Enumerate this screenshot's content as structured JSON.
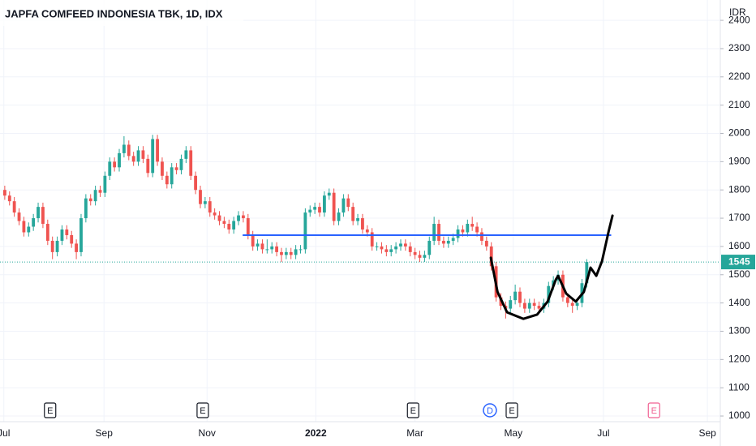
{
  "chart_data": {
    "type": "candlestick",
    "title": "JAPFA COMFEED INDONESIA TBK, 1D, IDX",
    "currency": "IDR",
    "up_color": "#26a69a",
    "down_color": "#ef5350",
    "xlim": [
      -1,
      150
    ],
    "ylim": [
      980,
      2472
    ],
    "xticks": [
      {
        "value": -0.2,
        "label": "Jul"
      },
      {
        "value": 20.8,
        "label": "Sep"
      },
      {
        "value": 42.4,
        "label": "Nov"
      },
      {
        "value": 65.2,
        "label": "2022"
      },
      {
        "value": 86,
        "label": "Mar"
      },
      {
        "value": 106.6,
        "label": "May"
      },
      {
        "value": 125.5,
        "label": "Jul"
      },
      {
        "value": 147.3,
        "label": "Sep"
      }
    ],
    "yticks": [
      1000,
      1100,
      1200,
      1300,
      1400,
      1500,
      1600,
      1700,
      1800,
      1900,
      2000,
      2100,
      2200,
      2300,
      2400
    ],
    "grid": true,
    "ohlc": [
      [
        1800,
        1815,
        1765,
        1780
      ],
      [
        1780,
        1795,
        1745,
        1760
      ],
      [
        1760,
        1775,
        1705,
        1720
      ],
      [
        1720,
        1735,
        1675,
        1690
      ],
      [
        1690,
        1705,
        1635,
        1650
      ],
      [
        1650,
        1685,
        1635,
        1670
      ],
      [
        1670,
        1715,
        1655,
        1700
      ],
      [
        1700,
        1755,
        1685,
        1740
      ],
      [
        1740,
        1755,
        1665,
        1680
      ],
      [
        1680,
        1695,
        1605,
        1620
      ],
      [
        1620,
        1635,
        1555,
        1580
      ],
      [
        1580,
        1635,
        1565,
        1620
      ],
      [
        1620,
        1675,
        1605,
        1660
      ],
      [
        1660,
        1675,
        1625,
        1640
      ],
      [
        1640,
        1655,
        1595,
        1610
      ],
      [
        1610,
        1625,
        1555,
        1580
      ],
      [
        1580,
        1715,
        1565,
        1700
      ],
      [
        1700,
        1785,
        1685,
        1770
      ],
      [
        1770,
        1785,
        1745,
        1760
      ],
      [
        1760,
        1815,
        1745,
        1800
      ],
      [
        1800,
        1815,
        1775,
        1790
      ],
      [
        1790,
        1865,
        1775,
        1850
      ],
      [
        1850,
        1915,
        1835,
        1900
      ],
      [
        1900,
        1915,
        1865,
        1880
      ],
      [
        1880,
        1945,
        1865,
        1930
      ],
      [
        1930,
        1990,
        1915,
        1960
      ],
      [
        1960,
        1975,
        1905,
        1920
      ],
      [
        1920,
        1935,
        1885,
        1900
      ],
      [
        1900,
        1955,
        1885,
        1940
      ],
      [
        1940,
        1955,
        1895,
        1910
      ],
      [
        1910,
        1925,
        1845,
        1860
      ],
      [
        1860,
        1995,
        1845,
        1980
      ],
      [
        1980,
        1995,
        1885,
        1900
      ],
      [
        1900,
        1915,
        1835,
        1850
      ],
      [
        1850,
        1865,
        1805,
        1820
      ],
      [
        1820,
        1895,
        1805,
        1880
      ],
      [
        1880,
        1895,
        1855,
        1870
      ],
      [
        1870,
        1925,
        1855,
        1910
      ],
      [
        1910,
        1955,
        1895,
        1940
      ],
      [
        1940,
        1955,
        1835,
        1850
      ],
      [
        1850,
        1865,
        1785,
        1800
      ],
      [
        1800,
        1815,
        1735,
        1750
      ],
      [
        1750,
        1775,
        1735,
        1760
      ],
      [
        1760,
        1775,
        1705,
        1720
      ],
      [
        1720,
        1735,
        1695,
        1710
      ],
      [
        1710,
        1725,
        1675,
        1690
      ],
      [
        1690,
        1705,
        1665,
        1680
      ],
      [
        1680,
        1695,
        1645,
        1660
      ],
      [
        1660,
        1705,
        1645,
        1690
      ],
      [
        1690,
        1725,
        1675,
        1710
      ],
      [
        1710,
        1725,
        1685,
        1700
      ],
      [
        1700,
        1715,
        1625,
        1640
      ],
      [
        1640,
        1655,
        1585,
        1600
      ],
      [
        1600,
        1625,
        1585,
        1610
      ],
      [
        1610,
        1625,
        1575,
        1590
      ],
      [
        1590,
        1625,
        1575,
        1590
      ],
      [
        1590,
        1615,
        1575,
        1600
      ],
      [
        1600,
        1615,
        1565,
        1580
      ],
      [
        1580,
        1595,
        1545,
        1570
      ],
      [
        1570,
        1595,
        1555,
        1580
      ],
      [
        1580,
        1595,
        1555,
        1570
      ],
      [
        1570,
        1605,
        1555,
        1590
      ],
      [
        1590,
        1605,
        1575,
        1590
      ],
      [
        1590,
        1735,
        1575,
        1720
      ],
      [
        1720,
        1745,
        1705,
        1730
      ],
      [
        1730,
        1755,
        1715,
        1740
      ],
      [
        1740,
        1755,
        1705,
        1720
      ],
      [
        1720,
        1795,
        1705,
        1780
      ],
      [
        1780,
        1805,
        1765,
        1790
      ],
      [
        1790,
        1805,
        1675,
        1690
      ],
      [
        1690,
        1735,
        1675,
        1720
      ],
      [
        1720,
        1785,
        1705,
        1770
      ],
      [
        1770,
        1785,
        1725,
        1740
      ],
      [
        1740,
        1755,
        1675,
        1690
      ],
      [
        1690,
        1715,
        1675,
        1700
      ],
      [
        1700,
        1715,
        1645,
        1660
      ],
      [
        1660,
        1675,
        1635,
        1650
      ],
      [
        1650,
        1665,
        1585,
        1600
      ],
      [
        1600,
        1615,
        1585,
        1600
      ],
      [
        1600,
        1615,
        1575,
        1590
      ],
      [
        1590,
        1605,
        1565,
        1580
      ],
      [
        1580,
        1605,
        1565,
        1590
      ],
      [
        1590,
        1615,
        1575,
        1600
      ],
      [
        1600,
        1625,
        1585,
        1610
      ],
      [
        1610,
        1625,
        1585,
        1600
      ],
      [
        1600,
        1615,
        1565,
        1580
      ],
      [
        1580,
        1595,
        1555,
        1570
      ],
      [
        1570,
        1585,
        1545,
        1560
      ],
      [
        1560,
        1585,
        1545,
        1570
      ],
      [
        1570,
        1635,
        1555,
        1620
      ],
      [
        1620,
        1705,
        1605,
        1680
      ],
      [
        1680,
        1695,
        1605,
        1620
      ],
      [
        1620,
        1635,
        1595,
        1610
      ],
      [
        1610,
        1635,
        1595,
        1620
      ],
      [
        1620,
        1645,
        1605,
        1630
      ],
      [
        1630,
        1675,
        1615,
        1660
      ],
      [
        1660,
        1675,
        1635,
        1650
      ],
      [
        1650,
        1695,
        1635,
        1680
      ],
      [
        1680,
        1705,
        1655,
        1670
      ],
      [
        1670,
        1685,
        1635,
        1650
      ],
      [
        1650,
        1665,
        1605,
        1620
      ],
      [
        1620,
        1635,
        1585,
        1600
      ],
      [
        1600,
        1615,
        1515,
        1530
      ],
      [
        1530,
        1545,
        1405,
        1420
      ],
      [
        1420,
        1435,
        1375,
        1390
      ],
      [
        1390,
        1405,
        1345,
        1380
      ],
      [
        1380,
        1425,
        1365,
        1410
      ],
      [
        1410,
        1465,
        1395,
        1440
      ],
      [
        1440,
        1455,
        1385,
        1400
      ],
      [
        1400,
        1415,
        1365,
        1380
      ],
      [
        1380,
        1415,
        1365,
        1400
      ],
      [
        1400,
        1415,
        1375,
        1390
      ],
      [
        1390,
        1405,
        1365,
        1380
      ],
      [
        1380,
        1415,
        1365,
        1400
      ],
      [
        1400,
        1475,
        1385,
        1460
      ],
      [
        1460,
        1495,
        1445,
        1480
      ],
      [
        1480,
        1515,
        1465,
        1500
      ],
      [
        1500,
        1515,
        1405,
        1420
      ],
      [
        1420,
        1435,
        1385,
        1400
      ],
      [
        1400,
        1415,
        1365,
        1390
      ],
      [
        1390,
        1415,
        1375,
        1400
      ],
      [
        1400,
        1485,
        1385,
        1470
      ],
      [
        1470,
        1555,
        1455,
        1545
      ]
    ],
    "last_price_color": "#26a69a",
    "drawings": [
      {
        "color": "#2962ff",
        "points": [
          [
            50,
            1640
          ],
          [
            127,
            1640
          ]
        ]
      },
      {
        "color": "#000000",
        "points": [
          [
            101.9,
            1560
          ],
          [
            103.3,
            1439
          ],
          [
            105.3,
            1367
          ],
          [
            108.7,
            1344
          ],
          [
            111.6,
            1359
          ],
          [
            113.8,
            1405
          ],
          [
            115.5,
            1482
          ],
          [
            116,
            1496
          ],
          [
            117.7,
            1433
          ],
          [
            119.7,
            1405
          ],
          [
            121.4,
            1439
          ],
          [
            122.8,
            1525
          ],
          [
            124,
            1496
          ],
          [
            125.2,
            1548
          ],
          [
            126.6,
            1654
          ],
          [
            127.4,
            1709
          ]
        ]
      }
    ],
    "events": [
      {
        "x": 9.5,
        "label": "E",
        "color": "#131722"
      },
      {
        "x": 41.5,
        "label": "E",
        "color": "#131722"
      },
      {
        "x": 85.6,
        "label": "E",
        "color": "#131722"
      },
      {
        "x": 101.7,
        "label": "D",
        "color": "#2962ff"
      },
      {
        "x": 106.3,
        "label": "E",
        "color": "#131722"
      },
      {
        "x": 136.1,
        "label": "E",
        "color": "#f06292"
      }
    ]
  }
}
